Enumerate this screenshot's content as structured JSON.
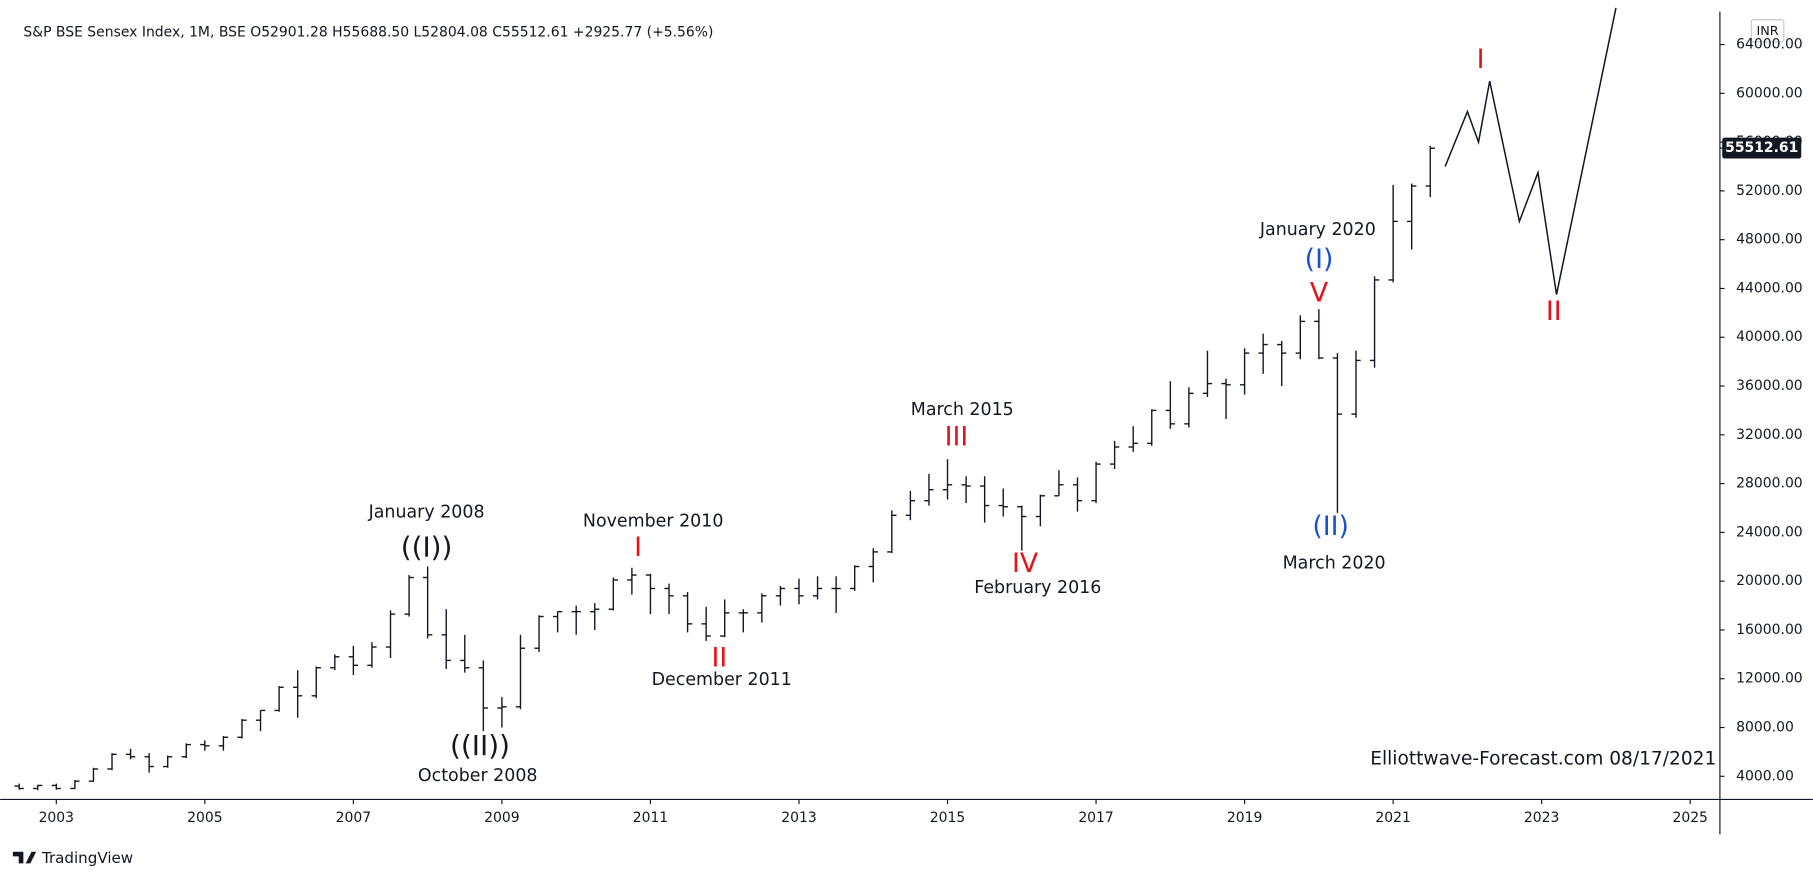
{
  "chart_data": {
    "type": "ohlc",
    "title": "S&P BSE Sensex Index, 1M, BSE  O52901.28  H55688.50  L52804.08  C55512.61  +2925.77 (+5.56%)",
    "currency": "INR",
    "brand": "TradingView",
    "color": "#131722",
    "last_price": 55512.61,
    "x": [
      2002.5,
      2002.75,
      2003.0,
      2003.25,
      2003.5,
      2003.75,
      2004.0,
      2004.25,
      2004.5,
      2004.75,
      2005.0,
      2005.25,
      2005.5,
      2005.75,
      2006.0,
      2006.25,
      2006.5,
      2006.75,
      2007.0,
      2007.25,
      2007.5,
      2007.75,
      2008.0,
      2008.25,
      2008.5,
      2008.75,
      2009.0,
      2009.25,
      2009.5,
      2009.75,
      2010.0,
      2010.25,
      2010.5,
      2010.75,
      2011.0,
      2011.25,
      2011.5,
      2011.75,
      2012.0,
      2012.25,
      2012.5,
      2012.75,
      2013.0,
      2013.25,
      2013.5,
      2013.75,
      2014.0,
      2014.25,
      2014.5,
      2014.75,
      2015.0,
      2015.25,
      2015.5,
      2015.75,
      2016.0,
      2016.25,
      2016.5,
      2016.75,
      2017.0,
      2017.25,
      2017.5,
      2017.75,
      2018.0,
      2018.25,
      2018.5,
      2018.75,
      2019.0,
      2019.25,
      2019.5,
      2019.75,
      2020.0,
      2020.25,
      2020.5,
      2020.75,
      2021.0,
      2021.25,
      2021.5
    ],
    "open": [
      3200,
      3000,
      3250,
      3000,
      3600,
      4600,
      5800,
      5600,
      4800,
      5600,
      6600,
      6500,
      7200,
      8600,
      9400,
      11300,
      10600,
      12900,
      13800,
      13100,
      14600,
      17300,
      20300,
      15600,
      13500,
      12900,
      9600,
      9700,
      14500,
      17100,
      17500,
      17500,
      17700,
      20100,
      20500,
      19400,
      18800,
      16500,
      15500,
      17400,
      17400,
      18800,
      19400,
      18800,
      19400,
      19400,
      21200,
      22400,
      25400,
      26600,
      27500,
      27900,
      27800,
      26200,
      26100,
      25300,
      27000,
      27900,
      26600,
      29600,
      31000,
      31300,
      34000,
      32900,
      35400,
      36200,
      36100,
      38700,
      39400,
      38700,
      41300,
      38300,
      33700,
      38100,
      44700,
      49500,
      52400
    ],
    "high": [
      3400,
      3300,
      3400,
      3700,
      4700,
      5900,
      6250,
      5900,
      5700,
      6700,
      6950,
      7300,
      8700,
      9400,
      11400,
      12700,
      13000,
      14000,
      14700,
      15000,
      17600,
      20500,
      21200,
      17700,
      15600,
      13500,
      10500,
      15600,
      17200,
      17500,
      18000,
      18200,
      20300,
      21100,
      20600,
      19800,
      19100,
      17900,
      18500,
      17700,
      19000,
      19600,
      20200,
      20400,
      20400,
      21300,
      22700,
      25800,
      27400,
      28800,
      30000,
      28600,
      28600,
      27600,
      26200,
      27100,
      29100,
      28500,
      29800,
      31500,
      32700,
      34100,
      36400,
      35900,
      38900,
      36600,
      39100,
      40300,
      39700,
      41800,
      42300,
      38700,
      38900,
      45000,
      52500,
      52600,
      55700
    ],
    "low": [
      2900,
      2850,
      2900,
      2950,
      3550,
      4500,
      5400,
      4300,
      4700,
      5500,
      6100,
      6100,
      7100,
      7700,
      9300,
      8800,
      10400,
      12700,
      12300,
      12900,
      13700,
      17100,
      15300,
      12800,
      12500,
      7700,
      8000,
      9500,
      14200,
      15800,
      15600,
      16000,
      17600,
      18900,
      17300,
      17300,
      15800,
      15100,
      15400,
      15800,
      16600,
      18000,
      18100,
      18500,
      17400,
      19200,
      19900,
      22300,
      25000,
      26200,
      26700,
      26400,
      24800,
      25300,
      22500,
      24500,
      27000,
      25700,
      26400,
      29200,
      30600,
      31100,
      32500,
      32600,
      35100,
      33300,
      35300,
      37000,
      36000,
      38200,
      38200,
      25600,
      33400,
      37500,
      44500,
      47200,
      51500
    ],
    "close": [
      3000,
      3250,
      3000,
      3600,
      4600,
      5800,
      5600,
      4800,
      5600,
      6600,
      6500,
      7200,
      8600,
      9400,
      11300,
      10600,
      12900,
      13800,
      13100,
      14600,
      17300,
      20300,
      15600,
      13500,
      12900,
      9600,
      9700,
      14500,
      17100,
      17500,
      17500,
      17700,
      20100,
      20500,
      19400,
      18800,
      16500,
      15500,
      17400,
      17400,
      18800,
      19400,
      18800,
      19400,
      19400,
      21200,
      22400,
      25400,
      26600,
      27500,
      27900,
      27800,
      26200,
      26100,
      25300,
      27000,
      27900,
      26600,
      29600,
      31000,
      31300,
      34000,
      32900,
      35400,
      36200,
      36100,
      38700,
      39400,
      38700,
      41300,
      38300,
      33700,
      38100,
      44700,
      49500,
      52400,
      55500
    ],
    "projection": {
      "x": [
        2021.7,
        2022.0,
        2022.15,
        2022.3,
        2022.7,
        2022.95,
        2023.2,
        2024.0
      ],
      "values": [
        54000,
        58500,
        56000,
        61000,
        49500,
        53500,
        43500,
        67000
      ]
    },
    "xlim": [
      2002.4,
      2025.4
    ],
    "xticks": [
      2003,
      2005,
      2007,
      2009,
      2011,
      2013,
      2015,
      2017,
      2019,
      2021,
      2023,
      2025
    ],
    "ylim": [
      2100,
      66700
    ],
    "yticks": [
      {
        "value": 4000,
        "label": "4000.00"
      },
      {
        "value": 8000,
        "label": "8000.00"
      },
      {
        "value": 12000,
        "label": "12000.00"
      },
      {
        "value": 16000,
        "label": "16000.00"
      },
      {
        "value": 20000,
        "label": "20000.00"
      },
      {
        "value": 24000,
        "label": "24000.00"
      },
      {
        "value": 28000,
        "label": "28000.00"
      },
      {
        "value": 32000,
        "label": "32000.00"
      },
      {
        "value": 36000,
        "label": "36000.00"
      },
      {
        "value": 40000,
        "label": "40000.00"
      },
      {
        "value": 44000,
        "label": "44000.00"
      },
      {
        "value": 48000,
        "label": "48000.00"
      },
      {
        "value": 52000,
        "label": "52000.00"
      },
      {
        "value": 56000,
        "label": "56000.00"
      },
      {
        "value": 60000,
        "label": "60000.00"
      },
      {
        "value": 64000,
        "label": "64000.00"
      }
    ],
    "annotations": [
      {
        "text": "January 2008",
        "color": "#131722"
      },
      {
        "text": "((I))",
        "color": "#131722"
      },
      {
        "text": "((II))",
        "color": "#131722"
      },
      {
        "text": "October 2008",
        "color": "#131722"
      },
      {
        "text": "November 2010",
        "color": "#131722"
      },
      {
        "text": "I",
        "color": "#e8101a"
      },
      {
        "text": "II",
        "color": "#e8101a"
      },
      {
        "text": "December 2011",
        "color": "#131722"
      },
      {
        "text": "March 2015",
        "color": "#131722"
      },
      {
        "text": "III",
        "color": "#e8101a"
      },
      {
        "text": "IV",
        "color": "#e8101a"
      },
      {
        "text": "February 2016",
        "color": "#131722"
      },
      {
        "text": "January 2020",
        "color": "#131722"
      },
      {
        "text": "(I)",
        "color": "#1a4fcf"
      },
      {
        "text": "V",
        "color": "#e8101a"
      },
      {
        "text": "(II)",
        "color": "#1a4fcf"
      },
      {
        "text": "March 2020",
        "color": "#131722"
      },
      {
        "text": "I",
        "color": "#e8101a"
      },
      {
        "text": "II",
        "color": "#e8101a"
      },
      {
        "text": "Elliottwave-Forecast.com 08/17/2021",
        "color": "#131722"
      }
    ]
  }
}
